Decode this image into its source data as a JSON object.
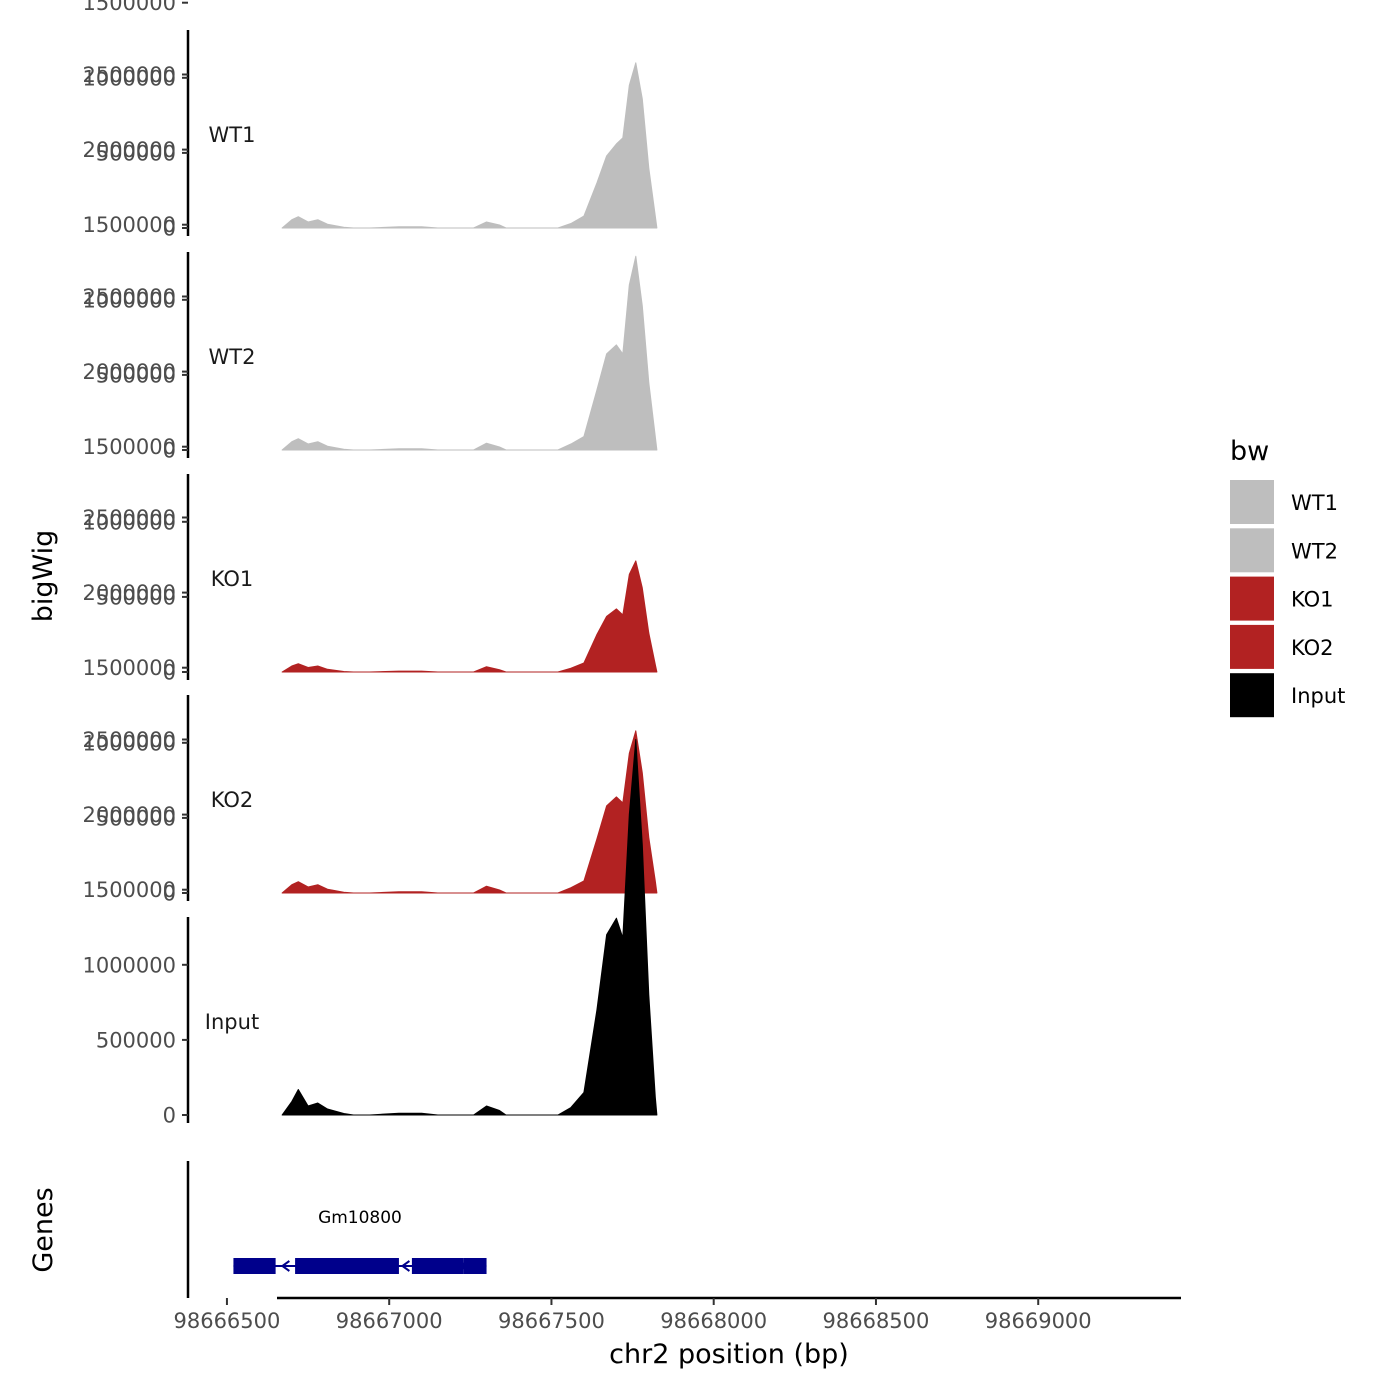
{
  "chart_data": {
    "type": "area",
    "subtype": "genome-browser-tracks",
    "ylabel": "bigWig",
    "gene_track_label": "Genes",
    "xlabel": "chr2 position (bp)",
    "xlim": [
      98666380,
      98669440
    ],
    "x_ticks": [
      98666500,
      98667000,
      98667500,
      98668000,
      98668500,
      98669000
    ],
    "x_tick_labels": [
      "98666500",
      "98667000",
      "98667500",
      "98668000",
      "98668500",
      "98669000"
    ],
    "ylim": [
      0,
      2500000
    ],
    "y_ticks": [
      0,
      500000,
      1000000,
      1500000,
      2000000,
      2500000
    ],
    "y_tick_labels": [
      "0",
      "500000",
      "1000000",
      "1500000",
      "2000000",
      "2500000"
    ],
    "legend": {
      "title": "bw",
      "position": "right",
      "entries": [
        {
          "label": "WT1",
          "color": "#bebebe"
        },
        {
          "label": "WT2",
          "color": "#bebebe"
        },
        {
          "label": "KO1",
          "color": "#b22222"
        },
        {
          "label": "KO2",
          "color": "#b22222"
        },
        {
          "label": "Input",
          "color": "#000000"
        }
      ]
    },
    "x": [
      98666670,
      98666700,
      98666720,
      98666750,
      98666780,
      98666810,
      98666860,
      98666890,
      98666900,
      98666940,
      98667030,
      98667100,
      98667150,
      98667260,
      98667300,
      98667340,
      98667360,
      98667380,
      98667520,
      98667560,
      98667600,
      98667640,
      98667670,
      98667700,
      98667720,
      98667740,
      98667760,
      98667780,
      98667800,
      98667820,
      98667825
    ],
    "series": [
      {
        "name": "WT1",
        "color": "#bebebe",
        "values": [
          0,
          55000,
          75000,
          40000,
          55000,
          25000,
          5000,
          0,
          0,
          0,
          8000,
          8000,
          0,
          0,
          40000,
          20000,
          0,
          0,
          0,
          30000,
          80000,
          300000,
          480000,
          560000,
          600000,
          950000,
          1100000,
          860000,
          400000,
          80000,
          0
        ]
      },
      {
        "name": "WT2",
        "color": "#bebebe",
        "values": [
          0,
          55000,
          75000,
          40000,
          55000,
          25000,
          5000,
          0,
          0,
          0,
          8000,
          8000,
          0,
          0,
          45000,
          20000,
          0,
          0,
          0,
          40000,
          90000,
          400000,
          640000,
          700000,
          640000,
          1100000,
          1290000,
          960000,
          450000,
          90000,
          0
        ]
      },
      {
        "name": "KO1",
        "color": "#b22222",
        "values": [
          0,
          40000,
          55000,
          30000,
          40000,
          18000,
          3000,
          0,
          0,
          0,
          6000,
          6000,
          0,
          0,
          35000,
          15000,
          0,
          0,
          0,
          25000,
          60000,
          250000,
          370000,
          420000,
          380000,
          650000,
          740000,
          560000,
          260000,
          50000,
          0
        ]
      },
      {
        "name": "KO2",
        "color": "#b22222",
        "values": [
          0,
          55000,
          75000,
          40000,
          55000,
          25000,
          5000,
          0,
          0,
          0,
          8000,
          8000,
          0,
          0,
          45000,
          20000,
          0,
          0,
          0,
          35000,
          80000,
          360000,
          580000,
          640000,
          600000,
          930000,
          1080000,
          800000,
          370000,
          80000,
          0
        ]
      },
      {
        "name": "Input",
        "color": "#000000",
        "values": [
          0,
          90000,
          170000,
          60000,
          80000,
          40000,
          10000,
          0,
          0,
          0,
          12000,
          12000,
          0,
          0,
          60000,
          30000,
          0,
          0,
          0,
          50000,
          150000,
          700000,
          1200000,
          1310000,
          1180000,
          2000000,
          2500000,
          1800000,
          800000,
          120000,
          0
        ]
      }
    ],
    "genes": [
      {
        "name": "Gm10800",
        "color": "#00008b",
        "start": 98666520,
        "end": 98667300,
        "exons": [
          [
            98666520,
            98666650
          ],
          [
            98666710,
            98667030
          ],
          [
            98667070,
            98667230
          ],
          [
            98667230,
            98667300
          ]
        ]
      }
    ]
  }
}
